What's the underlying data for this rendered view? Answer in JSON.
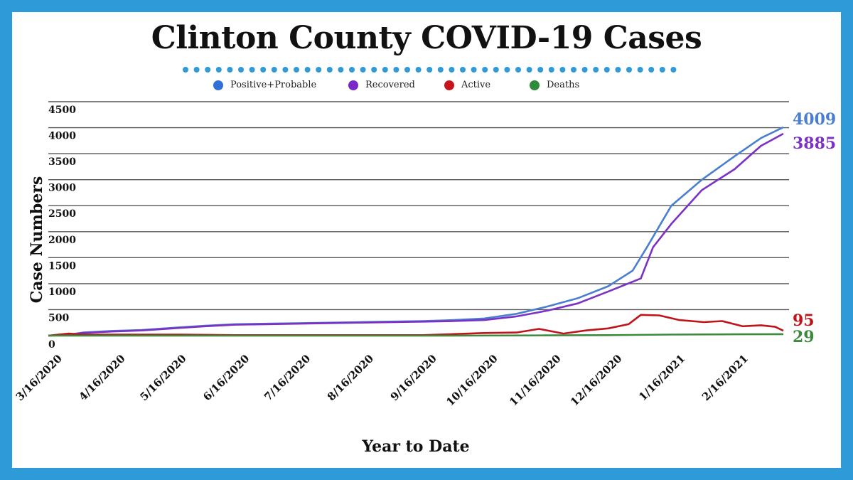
{
  "title": "Clinton County COVID-19 Cases",
  "legend": [
    {
      "label": "Positive+Probable",
      "color": "#2f6fd6"
    },
    {
      "label": "Recovered",
      "color": "#7a28c8"
    },
    {
      "label": "Active",
      "color": "#c8151b"
    },
    {
      "label": "Deaths",
      "color": "#2f8a3a"
    }
  ],
  "chart_data": {
    "type": "line",
    "title": "Clinton County COVID-19 Cases",
    "xlabel": "Year to Date",
    "ylabel": "Case Numbers",
    "ylim": [
      0,
      4500
    ],
    "yticks": [
      "4500",
      "4000",
      "3500",
      "3000",
      "2500",
      "2000",
      "1500",
      "1000",
      "500",
      "0"
    ],
    "xticks": [
      "3/16/2020",
      "4/16/2020",
      "5/16/2020",
      "6/16/2020",
      "7/16/2020",
      "8/16/2020",
      "9/16/2020",
      "10/16/2020",
      "11/16/2020",
      "12/16/2020",
      "1/16/2021",
      "2/16/2021"
    ],
    "grid": true,
    "legend_position": "top",
    "series": [
      {
        "name": "Positive+Probable",
        "color": "#4a7fd0",
        "end_label": "4009",
        "points": [
          [
            "2020-03-16",
            0
          ],
          [
            "2020-03-26",
            20
          ],
          [
            "2020-04-02",
            60
          ],
          [
            "2020-04-16",
            90
          ],
          [
            "2020-05-01",
            110
          ],
          [
            "2020-05-16",
            150
          ],
          [
            "2020-06-01",
            190
          ],
          [
            "2020-06-16",
            220
          ],
          [
            "2020-07-16",
            240
          ],
          [
            "2020-08-16",
            260
          ],
          [
            "2020-09-16",
            280
          ],
          [
            "2020-10-01",
            300
          ],
          [
            "2020-10-16",
            330
          ],
          [
            "2020-11-01",
            420
          ],
          [
            "2020-11-16",
            560
          ],
          [
            "2020-12-01",
            720
          ],
          [
            "2020-12-16",
            950
          ],
          [
            "2020-12-28",
            1250
          ],
          [
            "2021-01-04",
            1700
          ],
          [
            "2021-01-16",
            2500
          ],
          [
            "2021-01-31",
            3000
          ],
          [
            "2021-02-16",
            3450
          ],
          [
            "2021-03-01",
            3800
          ],
          [
            "2021-03-12",
            4009
          ]
        ]
      },
      {
        "name": "Recovered",
        "color": "#7b31c4",
        "end_label": "3885",
        "points": [
          [
            "2020-03-16",
            0
          ],
          [
            "2020-03-26",
            10
          ],
          [
            "2020-04-02",
            50
          ],
          [
            "2020-04-16",
            80
          ],
          [
            "2020-05-01",
            100
          ],
          [
            "2020-05-16",
            140
          ],
          [
            "2020-06-01",
            180
          ],
          [
            "2020-06-16",
            210
          ],
          [
            "2020-07-16",
            230
          ],
          [
            "2020-08-16",
            250
          ],
          [
            "2020-09-16",
            270
          ],
          [
            "2020-10-01",
            280
          ],
          [
            "2020-10-16",
            300
          ],
          [
            "2020-11-01",
            370
          ],
          [
            "2020-11-16",
            480
          ],
          [
            "2020-12-01",
            620
          ],
          [
            "2020-12-16",
            850
          ],
          [
            "2021-01-01",
            1100
          ],
          [
            "2021-01-07",
            1700
          ],
          [
            "2021-01-16",
            2150
          ],
          [
            "2021-01-31",
            2800
          ],
          [
            "2021-02-16",
            3200
          ],
          [
            "2021-03-01",
            3650
          ],
          [
            "2021-03-12",
            3885
          ]
        ]
      },
      {
        "name": "Active",
        "color": "#c0141b",
        "end_label": "95",
        "points": [
          [
            "2020-03-16",
            0
          ],
          [
            "2020-03-26",
            40
          ],
          [
            "2020-04-02",
            20
          ],
          [
            "2020-04-16",
            20
          ],
          [
            "2020-05-16",
            20
          ],
          [
            "2020-06-16",
            10
          ],
          [
            "2020-07-16",
            10
          ],
          [
            "2020-08-16",
            10
          ],
          [
            "2020-09-16",
            10
          ],
          [
            "2020-10-01",
            30
          ],
          [
            "2020-10-16",
            50
          ],
          [
            "2020-11-01",
            60
          ],
          [
            "2020-11-12",
            130
          ],
          [
            "2020-11-24",
            40
          ],
          [
            "2020-12-05",
            100
          ],
          [
            "2020-12-16",
            140
          ],
          [
            "2020-12-26",
            220
          ],
          [
            "2021-01-01",
            400
          ],
          [
            "2021-01-10",
            390
          ],
          [
            "2021-01-20",
            300
          ],
          [
            "2021-02-01",
            260
          ],
          [
            "2021-02-10",
            280
          ],
          [
            "2021-02-20",
            180
          ],
          [
            "2021-03-01",
            200
          ],
          [
            "2021-03-08",
            170
          ],
          [
            "2021-03-12",
            95
          ]
        ]
      },
      {
        "name": "Deaths",
        "color": "#3c8a3c",
        "end_label": "29",
        "points": [
          [
            "2020-03-16",
            0
          ],
          [
            "2020-10-01",
            0
          ],
          [
            "2020-11-16",
            5
          ],
          [
            "2020-12-16",
            10
          ],
          [
            "2021-01-16",
            20
          ],
          [
            "2021-02-16",
            26
          ],
          [
            "2021-03-12",
            29
          ]
        ]
      }
    ]
  }
}
